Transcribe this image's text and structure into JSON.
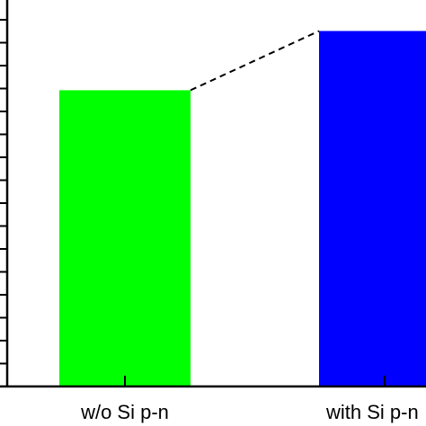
{
  "chart_data": {
    "type": "bar",
    "categories": [
      "w/o Si p-n",
      "with Si p-n"
    ],
    "values": [
      0.8,
      0.96
    ],
    "colors": [
      "#00ff00",
      "#0000ff"
    ],
    "ylim": [
      0,
      1.0
    ],
    "y_minor_ticks": 16,
    "connector": {
      "style": "dashed",
      "from": 0,
      "to": 1
    },
    "title": "",
    "xlabel": "",
    "ylabel": "",
    "grid": false,
    "legend": "none"
  }
}
